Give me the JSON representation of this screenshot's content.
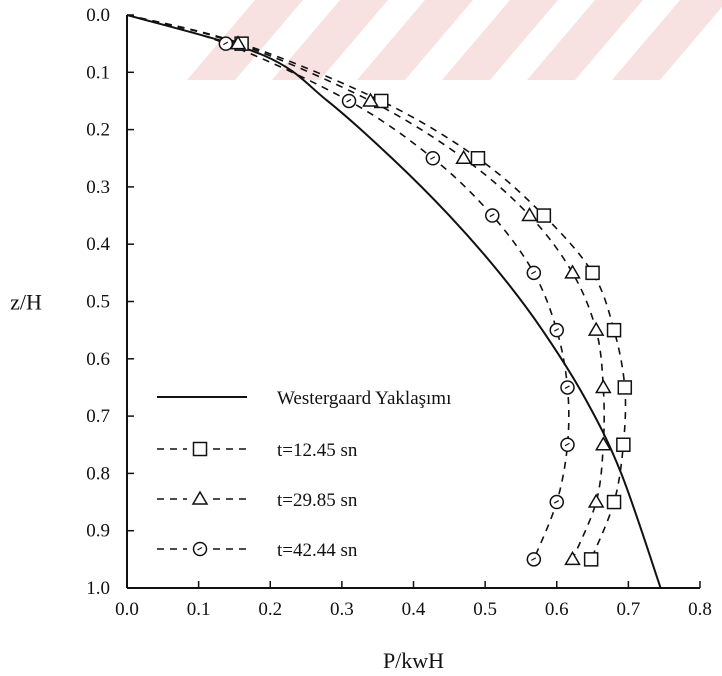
{
  "chart_data": {
    "type": "line",
    "xlabel": "P/kwH",
    "ylabel": "z/H",
    "xlim": [
      0.0,
      0.8
    ],
    "ylim": [
      0.0,
      1.0
    ],
    "y_inverted": true,
    "x_ticks": [
      "0.0",
      "0.1",
      "0.2",
      "0.3",
      "0.4",
      "0.5",
      "0.6",
      "0.7",
      "0.8"
    ],
    "y_ticks": [
      "0.0",
      "0.1",
      "0.2",
      "0.3",
      "0.4",
      "0.5",
      "0.6",
      "0.7",
      "0.8",
      "0.9",
      "1.0"
    ],
    "grid": false,
    "legend_position": "bottom-left",
    "series": [
      {
        "name": "Westergaard Yaklaşımı",
        "style": "solid",
        "marker": "none",
        "x": [
          0.0,
          0.19,
          0.28,
          0.37,
          0.45,
          0.52,
          0.58,
          0.64,
          0.69,
          0.745
        ],
        "y": [
          0.0,
          0.07,
          0.15,
          0.25,
          0.35,
          0.45,
          0.55,
          0.67,
          0.8,
          1.0
        ]
      },
      {
        "name": "t=12.45 sn",
        "style": "dashed",
        "marker": "square",
        "x": [
          0.16,
          0.355,
          0.49,
          0.582,
          0.65,
          0.68,
          0.695,
          0.693,
          0.68,
          0.648
        ],
        "y": [
          0.05,
          0.15,
          0.25,
          0.35,
          0.45,
          0.55,
          0.65,
          0.75,
          0.85,
          0.95
        ]
      },
      {
        "name": "t=29.85 sn",
        "style": "dashed",
        "marker": "triangle",
        "x": [
          0.155,
          0.34,
          0.47,
          0.562,
          0.622,
          0.655,
          0.665,
          0.665,
          0.655,
          0.622
        ],
        "y": [
          0.05,
          0.15,
          0.25,
          0.35,
          0.45,
          0.55,
          0.65,
          0.75,
          0.85,
          0.95
        ]
      },
      {
        "name": "t=42.44 sn",
        "style": "dashed",
        "marker": "circle",
        "x": [
          0.138,
          0.31,
          0.427,
          0.51,
          0.568,
          0.6,
          0.615,
          0.615,
          0.6,
          0.568
        ],
        "y": [
          0.05,
          0.15,
          0.25,
          0.35,
          0.45,
          0.55,
          0.65,
          0.75,
          0.85,
          0.95
        ]
      }
    ]
  }
}
